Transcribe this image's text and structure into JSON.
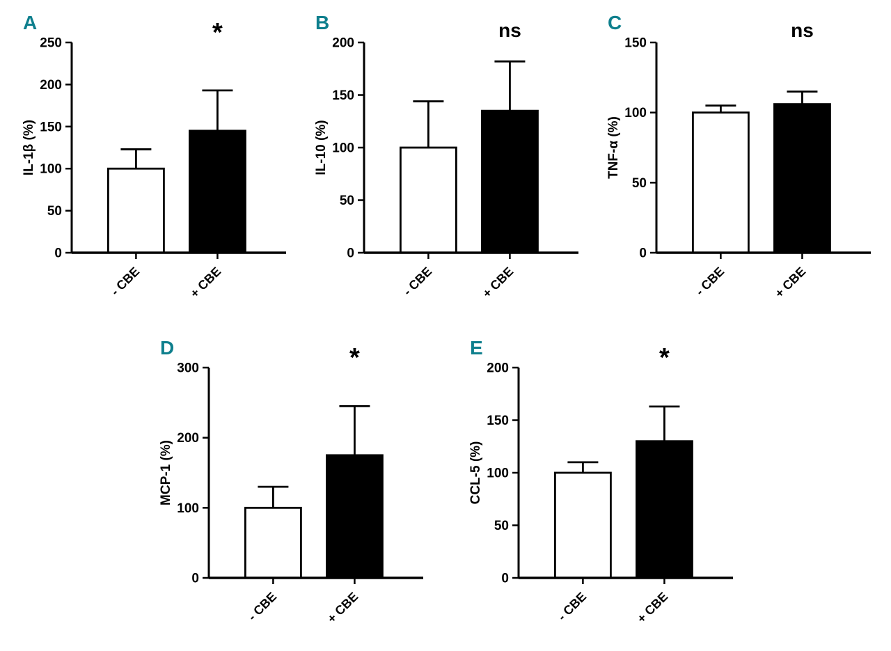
{
  "figure": {
    "background": "#ffffff",
    "panel_letter_color": "#0e7f8d",
    "axis_color": "#000000",
    "bar_outline_color": "#000000",
    "bar_fill_colors": [
      "#ffffff",
      "#000000"
    ]
  },
  "chart_data": [
    {
      "panel": "A",
      "row": 1,
      "type": "bar",
      "title": "",
      "ylabel": "IL-1β (%)",
      "xlabel": "",
      "ylim": [
        0,
        250
      ],
      "yticks": [
        0,
        50,
        100,
        150,
        200,
        250
      ],
      "categories": [
        "- CBE",
        "+ CBE"
      ],
      "values": [
        100,
        145
      ],
      "errors_upper": [
        23,
        48
      ],
      "annotation": "*",
      "annotation_over": "+ CBE",
      "grid": false,
      "legend": "none"
    },
    {
      "panel": "B",
      "row": 1,
      "type": "bar",
      "title": "",
      "ylabel": "IL-10 (%)",
      "xlabel": "",
      "ylim": [
        0,
        200
      ],
      "yticks": [
        0,
        50,
        100,
        150,
        200
      ],
      "categories": [
        "- CBE",
        "+ CBE"
      ],
      "values": [
        100,
        135
      ],
      "errors_upper": [
        44,
        47
      ],
      "annotation": "ns",
      "annotation_over": "+ CBE",
      "grid": false,
      "legend": "none"
    },
    {
      "panel": "C",
      "row": 1,
      "type": "bar",
      "title": "",
      "ylabel": "TNF-α (%)",
      "xlabel": "",
      "ylim": [
        0,
        150
      ],
      "yticks": [
        0,
        50,
        100,
        150
      ],
      "categories": [
        "- CBE",
        "+ CBE"
      ],
      "values": [
        100,
        106
      ],
      "errors_upper": [
        5,
        9
      ],
      "annotation": "ns",
      "annotation_over": "+ CBE",
      "grid": false,
      "legend": "none"
    },
    {
      "panel": "D",
      "row": 2,
      "type": "bar",
      "title": "",
      "ylabel": "MCP-1 (%)",
      "xlabel": "",
      "ylim": [
        0,
        300
      ],
      "yticks": [
        0,
        100,
        200,
        300
      ],
      "categories": [
        "- CBE",
        "+ CBE"
      ],
      "values": [
        100,
        175
      ],
      "errors_upper": [
        30,
        70
      ],
      "annotation": "*",
      "annotation_over": "+ CBE",
      "grid": false,
      "legend": "none"
    },
    {
      "panel": "E",
      "row": 2,
      "type": "bar",
      "title": "",
      "ylabel": "CCL-5 (%)",
      "xlabel": "",
      "ylim": [
        0,
        200
      ],
      "yticks": [
        0,
        50,
        100,
        150,
        200
      ],
      "categories": [
        "- CBE",
        "+ CBE"
      ],
      "values": [
        100,
        130
      ],
      "errors_upper": [
        10,
        33
      ],
      "annotation": "*",
      "annotation_over": "+ CBE",
      "grid": false,
      "legend": "none"
    }
  ]
}
